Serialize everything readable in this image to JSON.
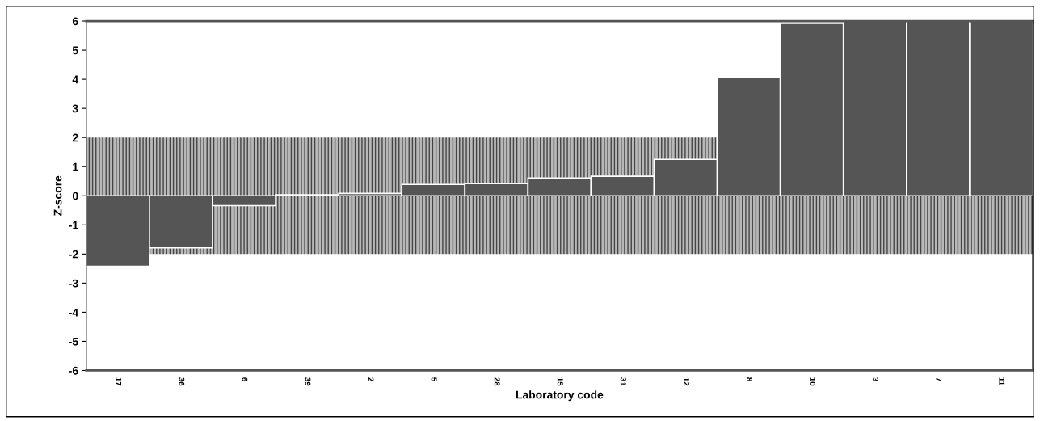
{
  "chart_data": {
    "type": "bar",
    "xlabel": "Laboratory code",
    "ylabel": "Z-score",
    "categories": [
      "17",
      "36",
      "6",
      "39",
      "2",
      "5",
      "28",
      "15",
      "31",
      "12",
      "8",
      "10",
      "3",
      "7",
      "11"
    ],
    "values": [
      -2.42,
      -1.79,
      -0.34,
      0.03,
      0.08,
      0.39,
      0.42,
      0.61,
      0.67,
      1.25,
      4.08,
      5.92,
      6,
      6,
      6
    ],
    "color": "#555555",
    "ylim": [
      -6,
      6
    ],
    "yticks": [
      -6,
      -5,
      -4,
      -3,
      -2,
      -1,
      0,
      1,
      2,
      3,
      4,
      5,
      6
    ],
    "bands": [
      {
        "axis": "y",
        "from": -2,
        "to": 2,
        "color": "#b8b8b8"
      }
    ],
    "grid": false,
    "legend": false
  }
}
